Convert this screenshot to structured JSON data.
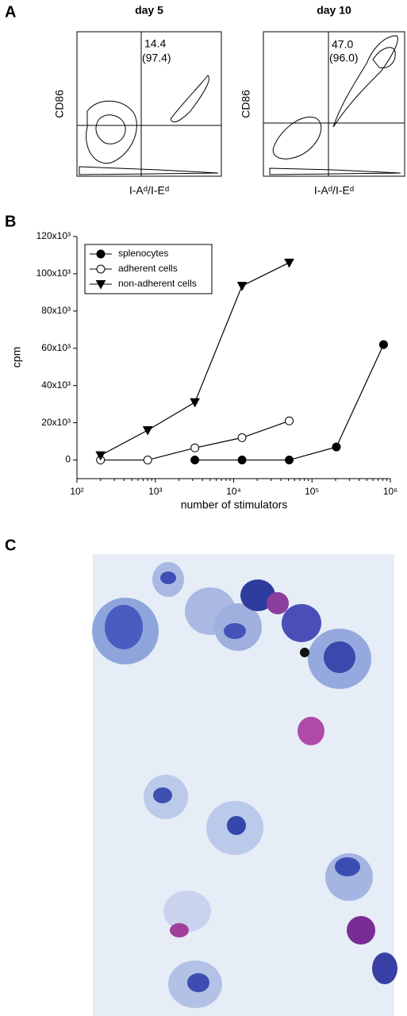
{
  "panel_labels": [
    "A",
    "B",
    "C"
  ],
  "flow": {
    "plots": [
      {
        "title": "day 5",
        "y_label": "CD86",
        "x_label": "I-Aᵈ/I-Eᵈ",
        "quadrant_value": "14.4",
        "quadrant_paren": "(97.4)"
      },
      {
        "title": "day 10",
        "y_label": "CD86",
        "x_label": "I-Aᵈ/I-Eᵈ",
        "quadrant_value": "47.0",
        "quadrant_paren": "(96.0)"
      }
    ]
  },
  "chart_data": {
    "type": "line",
    "x_label": "number of stimulators",
    "y_label": "cpm",
    "x_scale": "log",
    "legend": "upper left",
    "xlim": [
      100,
      1000000
    ],
    "xticks": [
      {
        "value": 100,
        "label": "10²"
      },
      {
        "value": 1000,
        "label": "10³"
      },
      {
        "value": 10000,
        "label": "10⁴"
      },
      {
        "value": 100000,
        "label": "10⁵"
      },
      {
        "value": 1000000,
        "label": "10⁶"
      }
    ],
    "ylim": [
      -10000,
      120000
    ],
    "yticks": [
      0,
      {
        "value": 20000,
        "label": "20x10³"
      },
      {
        "value": 40000,
        "label": "40x10³"
      },
      {
        "value": 60000,
        "label": "60x10³"
      },
      {
        "value": 80000,
        "label": "80x10³"
      },
      {
        "value": 100000,
        "label": "100x10³"
      },
      {
        "value": 120000,
        "label": "120x10³"
      }
    ],
    "series": [
      {
        "name": "splenocytes",
        "color": "#000000",
        "marker": "circle",
        "marker_fill": "#000000",
        "x": [
          3200,
          12800,
          51200,
          204800,
          819200
        ],
        "values": [
          0,
          0,
          0,
          7000,
          62000
        ]
      },
      {
        "name": "adherent cells",
        "color": "#000000",
        "marker": "circle",
        "marker_fill": "#ffffff",
        "x": [
          200,
          800,
          3200,
          12800,
          51200
        ],
        "values": [
          0,
          0,
          6500,
          12000,
          21000
        ]
      },
      {
        "name": "non-adherent cells",
        "color": "#000000",
        "marker": "triangle-down",
        "marker_fill": "#000000",
        "x": [
          200,
          800,
          3200,
          12800,
          51200
        ],
        "values": [
          2500,
          16000,
          31000,
          93500,
          106000
        ]
      }
    ]
  }
}
